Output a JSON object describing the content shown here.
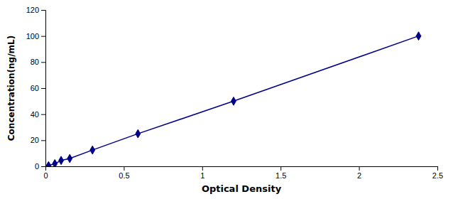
{
  "chart_data": {
    "type": "line",
    "x": [
      0.02,
      0.06,
      0.1,
      0.155,
      0.3,
      0.59,
      1.2,
      2.38
    ],
    "values": [
      0.5,
      2.0,
      4.5,
      6.0,
      12.5,
      25.0,
      50.0,
      100.0
    ],
    "color": "#00008B",
    "marker": "diamond",
    "line_style": "solid",
    "xlabel": "Optical Density",
    "ylabel": "Concentration(ng/mL)",
    "xlim": [
      0,
      2.5
    ],
    "ylim": [
      0,
      120
    ],
    "xticks": [
      0,
      0.5,
      1,
      1.5,
      2,
      2.5
    ],
    "yticks": [
      0,
      20,
      40,
      60,
      80,
      100,
      120
    ],
    "grid": false
  }
}
